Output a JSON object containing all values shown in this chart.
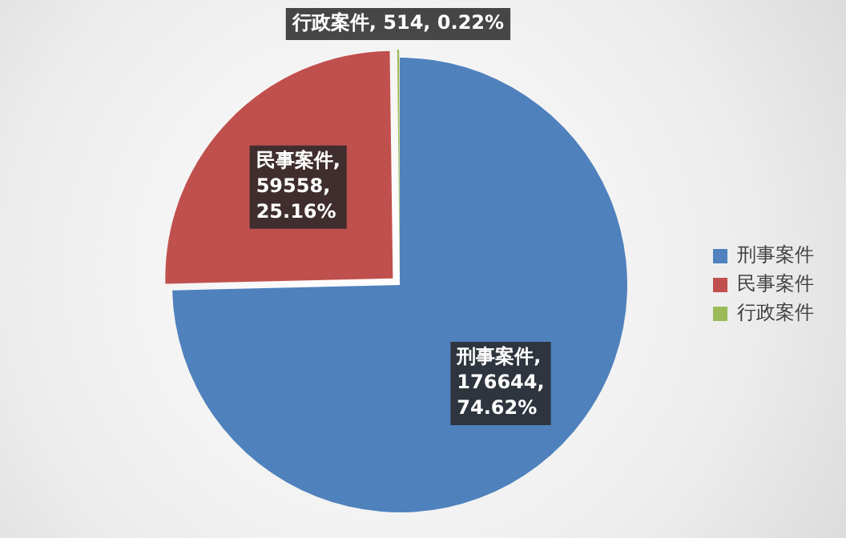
{
  "chart_data": {
    "type": "pie",
    "categories": [
      "刑事案件",
      "民事案件",
      "行政案件"
    ],
    "values": [
      176644,
      59558,
      514
    ],
    "colors": [
      "#4f81bd",
      "#c0504d",
      "#9bbb59"
    ],
    "value_labels": [
      "刑事案件, 176644, 74.62%",
      "民事案件, 59558, 25.16%",
      "行政案件, 514, 0.22%"
    ],
    "legend": "right"
  }
}
